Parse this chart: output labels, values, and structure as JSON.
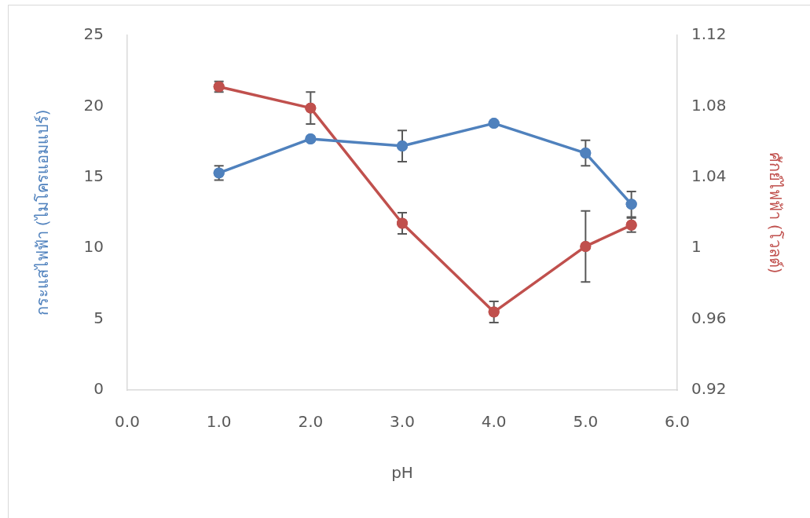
{
  "chart_data": {
    "type": "line",
    "xlabel": "pH",
    "ylabel": "กระแสไฟฟ้า (ไมโครแอมแปร์)",
    "y2label": "ศักย์ไฟฟ้า (โวลต์)",
    "x": [
      1.0,
      2.0,
      3.0,
      4.0,
      5.0,
      5.5
    ],
    "series": [
      {
        "color": "#4f81bd",
        "values": [
          15.3,
          17.7,
          17.2,
          18.8,
          16.7,
          13.1
        ],
        "errors": [
          0.5,
          null,
          1.1,
          0.1,
          0.9,
          0.9
        ]
      },
      {
        "color": "#c0504d",
        "axis": "y2",
        "values": [
          1.091,
          1.079,
          1.014,
          0.964,
          1.001,
          1.013
        ],
        "errors": [
          0.003,
          0.009,
          0.006,
          0.006,
          0.02,
          0.004
        ]
      }
    ],
    "xlim": [
      0,
      6
    ],
    "xticks": [
      {
        "value": 0,
        "label": "0.0"
      },
      {
        "value": 1,
        "label": "1.0"
      },
      {
        "value": 2,
        "label": "2.0"
      },
      {
        "value": 3,
        "label": "3.0"
      },
      {
        "value": 4,
        "label": "4.0"
      },
      {
        "value": 5,
        "label": "5.0"
      },
      {
        "value": 6,
        "label": "6.0"
      }
    ],
    "ylim": [
      0,
      25
    ],
    "yticks": [
      0,
      5,
      10,
      15,
      20,
      25
    ],
    "y2lim": [
      0.92,
      1.12
    ],
    "y2ticks": [
      0.92,
      0.96,
      1,
      1.04,
      1.08,
      1.12
    ],
    "grid": false,
    "legend": false,
    "marker": "circle",
    "line_style": "solid"
  }
}
